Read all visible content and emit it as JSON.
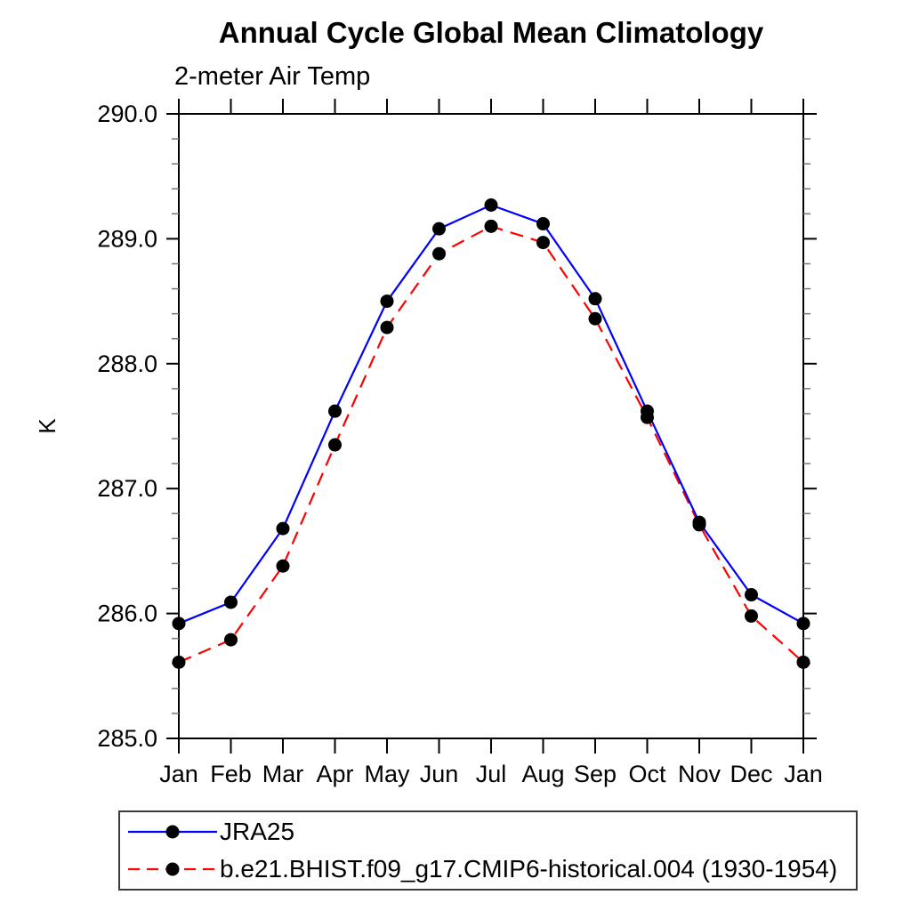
{
  "page": {
    "background_color": "#ffffff",
    "text_color": "#000000"
  },
  "chart_data": {
    "type": "line",
    "title": "Annual Cycle Global Mean Climatology",
    "subtitle": "2-meter Air Temp",
    "ylabel": "K",
    "xlabel": "",
    "x_tick_labels": [
      "Jan",
      "Feb",
      "Mar",
      "Apr",
      "May",
      "Jun",
      "Jul",
      "Aug",
      "Sep",
      "Oct",
      "Nov",
      "Dec",
      "Jan"
    ],
    "ylim": [
      285.0,
      290.0
    ],
    "y_major_step": 1.0,
    "y_minor_step": 0.2,
    "y_major_tick_labels": [
      "285.0",
      "286.0",
      "287.0",
      "288.0",
      "289.0",
      "290.0"
    ],
    "grid": false,
    "legend_position": "bottom-left",
    "axis_color": "#000000",
    "minor_tick_color": "#777777",
    "marker": {
      "shape": "circle",
      "color": "#000000",
      "radius": 7.5
    },
    "series": [
      {
        "name": "JRA25",
        "color": "#0000ff",
        "line_style": "solid",
        "values": [
          285.92,
          286.09,
          286.68,
          287.62,
          288.5,
          289.08,
          289.27,
          289.12,
          288.52,
          287.62,
          286.73,
          286.15,
          285.92
        ]
      },
      {
        "name": "b.e21.BHIST.f09_g17.CMIP6-historical.004 (1930-1954)",
        "color": "#ff0000",
        "line_style": "dashed",
        "values": [
          285.61,
          285.79,
          286.38,
          287.35,
          288.29,
          288.88,
          289.1,
          288.97,
          288.36,
          287.57,
          286.71,
          285.98,
          285.61
        ]
      }
    ]
  }
}
